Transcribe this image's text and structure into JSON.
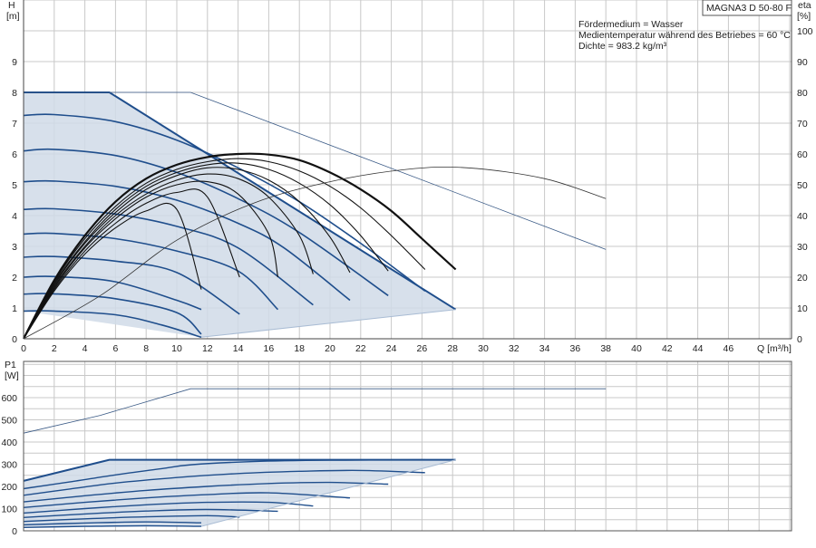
{
  "chart_data": [
    {
      "type": "line",
      "title": "MAGNA3 D 50-80 F",
      "annotations": [
        "Fördermedium = Wasser",
        "Medientemperatur während des Betriebes = 60 °C",
        "Dichte = 983.2 kg/m³"
      ],
      "xlabel": "Q [m³/h]",
      "ylabel_top": "H",
      "ylabel_unit": "[m]",
      "y2label_top": "eta",
      "y2label_unit": "[%]",
      "xlim": [
        0,
        50
      ],
      "ylim": [
        0,
        11
      ],
      "y2lim": [
        0,
        110
      ],
      "x_ticks": [
        "0",
        "2",
        "4",
        "6",
        "8",
        "10",
        "12",
        "14",
        "16",
        "18",
        "20",
        "22",
        "24",
        "26",
        "28",
        "30",
        "32",
        "34",
        "36",
        "38",
        "40",
        "42",
        "44",
        "46"
      ],
      "y_ticks": [
        "0",
        "1",
        "2",
        "3",
        "4",
        "5",
        "6",
        "7",
        "8",
        "9"
      ],
      "y2_ticks": [
        "0",
        "10",
        "20",
        "30",
        "40",
        "50",
        "60",
        "70",
        "80",
        "90",
        "100"
      ],
      "grid": true,
      "colors": {
        "envelope": "#1f4e8c",
        "fill": "#d0dbe8",
        "eff": "#111111",
        "grid": "#c8c8c8"
      },
      "series_head_curves": [
        {
          "x": [
            0,
            2,
            5.6
          ],
          "y": [
            8.0,
            8.0,
            8.0
          ],
          "note": "max flat"
        },
        {
          "x": [
            0,
            3,
            6,
            9,
            12,
            15,
            18,
            21,
            24,
            26.5,
            28.2
          ],
          "y": [
            8.0,
            7.85,
            7.35,
            6.65,
            5.8,
            4.9,
            4.0,
            3.05,
            2.1,
            1.4,
            0.95
          ]
        },
        {
          "x": [
            0,
            2,
            6,
            10,
            14,
            18,
            22,
            26.2
          ],
          "y": [
            7.25,
            7.28,
            7.05,
            6.45,
            5.55,
            4.45,
            3.1,
            1.55
          ]
        },
        {
          "x": [
            0,
            2,
            6,
            10,
            14,
            18,
            23.8
          ],
          "y": [
            6.1,
            6.15,
            5.95,
            5.4,
            4.55,
            3.45,
            1.4
          ]
        },
        {
          "x": [
            0,
            2,
            6,
            10,
            14,
            17,
            21.3
          ],
          "y": [
            5.1,
            5.12,
            4.95,
            4.5,
            3.75,
            2.95,
            1.25
          ]
        },
        {
          "x": [
            0,
            2,
            6,
            10,
            14,
            18.9
          ],
          "y": [
            4.2,
            4.22,
            4.05,
            3.65,
            2.95,
            1.1
          ]
        },
        {
          "x": [
            0,
            2,
            6,
            10,
            14,
            16.6
          ],
          "y": [
            3.4,
            3.42,
            3.25,
            2.85,
            2.2,
            0.95
          ]
        },
        {
          "x": [
            0,
            2,
            6,
            10,
            14.1
          ],
          "y": [
            2.65,
            2.67,
            2.52,
            2.15,
            0.8
          ]
        },
        {
          "x": [
            0,
            2,
            6,
            10,
            11.6
          ],
          "y": [
            2.0,
            2.02,
            1.85,
            1.25,
            0.95
          ]
        },
        {
          "x": [
            0,
            2,
            6,
            10,
            11.6
          ],
          "y": [
            1.45,
            1.46,
            1.3,
            0.85,
            0.15
          ]
        },
        {
          "x": [
            0,
            2,
            6,
            9,
            11.6
          ],
          "y": [
            0.9,
            0.9,
            0.78,
            0.45,
            0.05
          ]
        }
      ],
      "series_head_dashed_outer": {
        "x": [
          0,
          5.6,
          10.9,
          38
        ],
        "y": [
          8.0,
          8.0,
          8.0,
          2.9
        ]
      },
      "series_eta_outer": {
        "x": [
          0,
          5,
          10,
          15,
          20,
          25,
          29,
          34,
          38
        ],
        "y": [
          0,
          14,
          32,
          44,
          51,
          55,
          55.5,
          52,
          45.5
        ]
      },
      "series_eta_curves": [
        {
          "x": [
            0,
            2,
            4,
            6,
            8,
            10,
            12,
            14,
            16,
            18,
            20,
            22,
            24,
            26,
            28.2
          ],
          "y": [
            0,
            1.9,
            3.35,
            4.45,
            5.2,
            5.65,
            5.9,
            6.0,
            5.98,
            5.8,
            5.4,
            4.85,
            4.15,
            3.25,
            2.25
          ]
        },
        {
          "x": [
            0,
            2,
            4,
            6,
            8,
            10,
            12,
            14,
            16,
            18,
            20,
            22,
            24,
            26.2
          ],
          "y": [
            0,
            1.85,
            3.25,
            4.3,
            5.05,
            5.5,
            5.75,
            5.85,
            5.75,
            5.45,
            4.95,
            4.25,
            3.35,
            2.25
          ]
        },
        {
          "x": [
            0,
            2,
            4,
            6,
            8,
            10,
            12,
            14,
            16,
            18,
            20,
            22,
            23.8
          ],
          "y": [
            0,
            1.8,
            3.15,
            4.2,
            4.95,
            5.4,
            5.65,
            5.7,
            5.5,
            5.05,
            4.35,
            3.35,
            2.2
          ]
        },
        {
          "x": [
            0,
            2,
            4,
            6,
            8,
            10,
            12,
            14,
            16,
            18,
            20,
            21.3
          ],
          "y": [
            0,
            1.75,
            3.1,
            4.1,
            4.85,
            5.3,
            5.55,
            5.5,
            5.15,
            4.45,
            3.3,
            2.15
          ]
        },
        {
          "x": [
            0,
            2,
            4,
            6,
            8,
            10,
            12,
            14,
            16,
            18,
            18.9
          ],
          "y": [
            0,
            1.7,
            3.0,
            4.0,
            4.7,
            5.15,
            5.35,
            5.2,
            4.6,
            3.35,
            2.1
          ]
        },
        {
          "x": [
            0,
            2,
            4,
            6,
            8,
            10,
            12,
            14,
            16,
            16.6
          ],
          "y": [
            0,
            1.65,
            2.95,
            3.9,
            4.6,
            5.0,
            5.1,
            4.7,
            3.4,
            2.0
          ]
        },
        {
          "x": [
            0,
            2,
            4,
            6,
            8,
            10,
            12,
            14.1
          ],
          "y": [
            0,
            1.6,
            2.85,
            3.75,
            4.4,
            4.75,
            4.6,
            2.0
          ]
        },
        {
          "x": [
            0,
            2,
            4,
            6,
            8,
            10,
            11.6
          ],
          "y": [
            0,
            1.55,
            2.75,
            3.6,
            4.15,
            4.2,
            1.6
          ]
        }
      ]
    },
    {
      "type": "line",
      "ylabel_top": "P1",
      "ylabel_unit": "[W]",
      "xlim": [
        0,
        50
      ],
      "ylim": [
        0,
        700
      ],
      "y_ticks": [
        "0",
        "100",
        "200",
        "300",
        "400",
        "500",
        "600"
      ],
      "grid": true,
      "series_power_dashed": {
        "x": [
          0,
          5,
          10.9,
          38
        ],
        "y": [
          440,
          520,
          640,
          640
        ]
      },
      "series_power_curves": [
        {
          "x": [
            0,
            5.6,
            28.2
          ],
          "y": [
            225,
            320,
            320
          ]
        },
        {
          "x": [
            0,
            3,
            6,
            9,
            11,
            15,
            20,
            26.2
          ],
          "y": [
            190,
            220,
            252,
            280,
            298,
            312,
            318,
            320
          ]
        },
        {
          "x": [
            0,
            3,
            6,
            10,
            14,
            18,
            22,
            26.2
          ],
          "y": [
            160,
            188,
            215,
            240,
            258,
            268,
            272,
            262
          ]
        },
        {
          "x": [
            0,
            4,
            8,
            12,
            16,
            20,
            23.8
          ],
          "y": [
            130,
            158,
            182,
            200,
            213,
            218,
            210
          ]
        },
        {
          "x": [
            0,
            4,
            8,
            12,
            16,
            21.3
          ],
          "y": [
            105,
            128,
            148,
            163,
            171,
            148
          ]
        },
        {
          "x": [
            0,
            4,
            8,
            12,
            16,
            18.9
          ],
          "y": [
            80,
            100,
            117,
            128,
            128,
            112
          ]
        },
        {
          "x": [
            0,
            4,
            8,
            12,
            16.6
          ],
          "y": [
            60,
            76,
            89,
            96,
            88
          ]
        },
        {
          "x": [
            0,
            4,
            8,
            12,
            14.1
          ],
          "y": [
            42,
            54,
            63,
            68,
            62
          ]
        },
        {
          "x": [
            0,
            4,
            8,
            11.6
          ],
          "y": [
            27,
            35,
            40,
            36
          ]
        },
        {
          "x": [
            0,
            4,
            8,
            11.6
          ],
          "y": [
            15,
            20,
            23,
            20
          ]
        }
      ]
    }
  ]
}
